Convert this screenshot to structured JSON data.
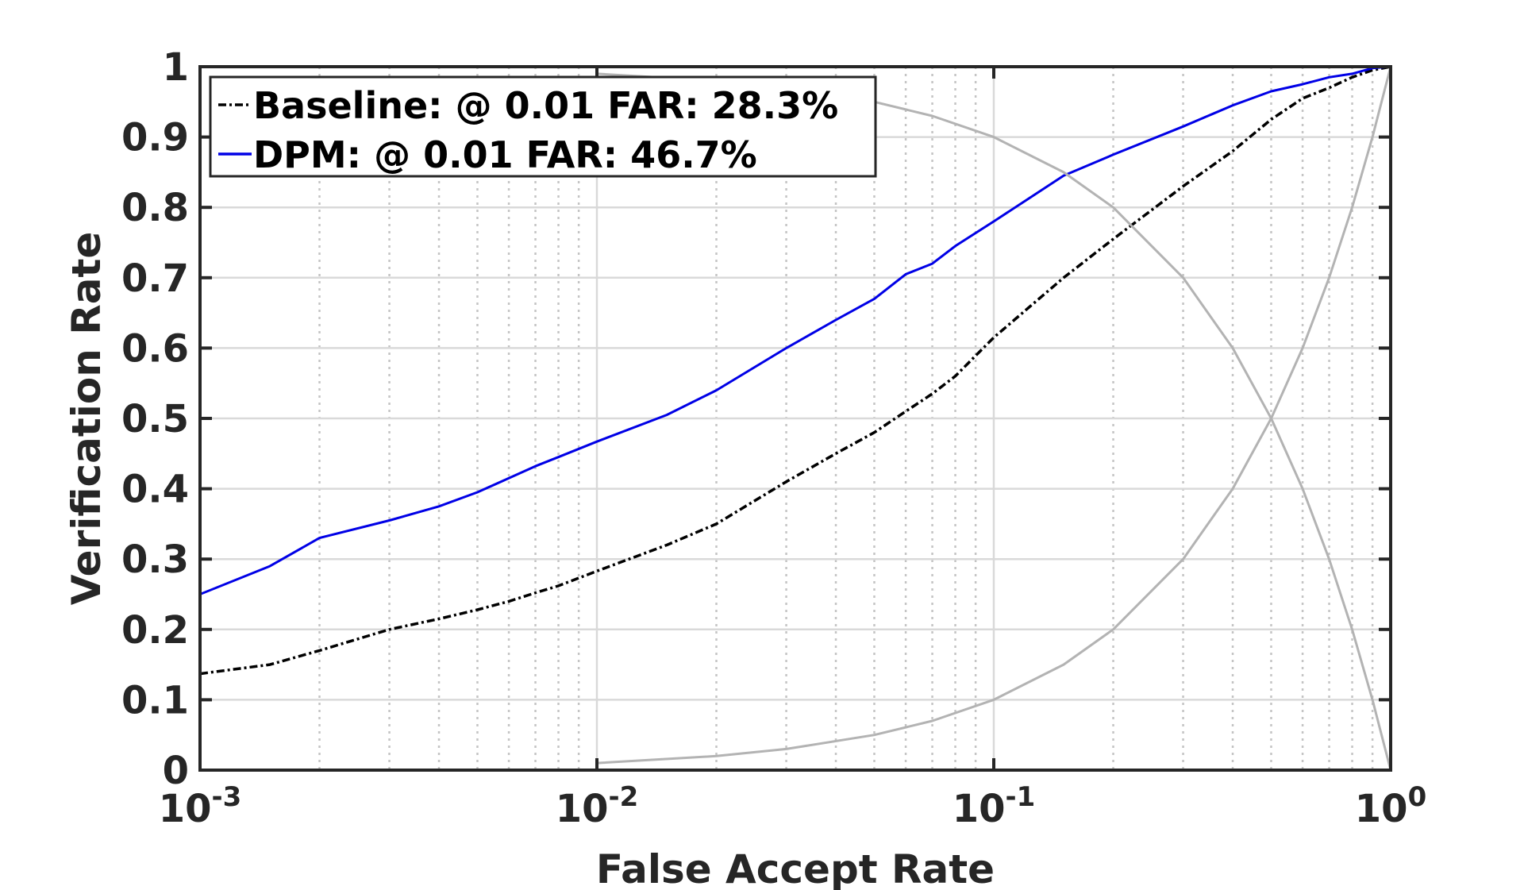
{
  "chart_data": {
    "type": "line",
    "title": "",
    "xlabel": "False Accept Rate",
    "ylabel": "Verification Rate",
    "x_scale": "log",
    "xlim": [
      0.001,
      1
    ],
    "ylim": [
      0,
      1
    ],
    "grid": true,
    "legend_position": "top-left",
    "x_ticks": [
      {
        "base": "10",
        "exp": "-3",
        "value": 0.001
      },
      {
        "base": "10",
        "exp": "-2",
        "value": 0.01
      },
      {
        "base": "10",
        "exp": "-1",
        "value": 0.1
      },
      {
        "base": "10",
        "exp": "0",
        "value": 1
      }
    ],
    "y_ticks": [
      "0",
      "0.1",
      "0.2",
      "0.3",
      "0.4",
      "0.5",
      "0.6",
      "0.7",
      "0.8",
      "0.9",
      "1"
    ],
    "series": [
      {
        "name": "Baseline: @ 0.01 FAR: 28.3%",
        "color": "#000000",
        "style": "dashdot",
        "x": [
          0.001,
          0.0015,
          0.002,
          0.003,
          0.004,
          0.005,
          0.006,
          0.007,
          0.008,
          0.01,
          0.015,
          0.02,
          0.03,
          0.04,
          0.05,
          0.06,
          0.07,
          0.08,
          0.1,
          0.15,
          0.2,
          0.3,
          0.4,
          0.5,
          0.6,
          0.7,
          0.8,
          0.9,
          1.0
        ],
        "values": [
          0.137,
          0.15,
          0.17,
          0.2,
          0.215,
          0.228,
          0.24,
          0.252,
          0.262,
          0.283,
          0.32,
          0.35,
          0.41,
          0.45,
          0.48,
          0.51,
          0.535,
          0.56,
          0.615,
          0.7,
          0.755,
          0.83,
          0.88,
          0.925,
          0.955,
          0.97,
          0.985,
          0.995,
          1.0
        ]
      },
      {
        "name": "DPM: @ 0.01 FAR: 46.7%",
        "color": "#0000e6",
        "style": "solid",
        "x": [
          0.001,
          0.0015,
          0.002,
          0.003,
          0.004,
          0.005,
          0.006,
          0.007,
          0.008,
          0.01,
          0.015,
          0.02,
          0.03,
          0.04,
          0.05,
          0.06,
          0.07,
          0.08,
          0.1,
          0.15,
          0.2,
          0.3,
          0.4,
          0.5,
          0.6,
          0.7,
          0.8,
          0.9,
          1.0
        ],
        "values": [
          0.25,
          0.29,
          0.33,
          0.355,
          0.375,
          0.395,
          0.415,
          0.432,
          0.445,
          0.467,
          0.505,
          0.54,
          0.6,
          0.64,
          0.67,
          0.705,
          0.72,
          0.745,
          0.78,
          0.845,
          0.875,
          0.915,
          0.945,
          0.965,
          0.975,
          0.985,
          0.99,
          0.998,
          1.0
        ]
      },
      {
        "name": "",
        "color": "#b3b3b3",
        "style": "solid",
        "x": [
          0.01,
          0.02,
          0.03,
          0.05,
          0.07,
          0.1,
          0.15,
          0.2,
          0.3,
          0.4,
          0.5,
          0.6,
          0.7,
          0.8,
          0.9,
          1.0
        ],
        "values": [
          0.99,
          0.98,
          0.97,
          0.95,
          0.93,
          0.9,
          0.85,
          0.8,
          0.7,
          0.6,
          0.5,
          0.4,
          0.3,
          0.2,
          0.1,
          0.0
        ]
      },
      {
        "name": "",
        "color": "#b3b3b3",
        "style": "solid",
        "x": [
          0.01,
          0.02,
          0.03,
          0.05,
          0.07,
          0.1,
          0.15,
          0.2,
          0.3,
          0.4,
          0.5,
          0.6,
          0.7,
          0.8,
          0.9,
          1.0
        ],
        "values": [
          0.01,
          0.02,
          0.03,
          0.05,
          0.07,
          0.1,
          0.15,
          0.2,
          0.3,
          0.4,
          0.5,
          0.6,
          0.7,
          0.8,
          0.9,
          1.0
        ]
      }
    ]
  }
}
